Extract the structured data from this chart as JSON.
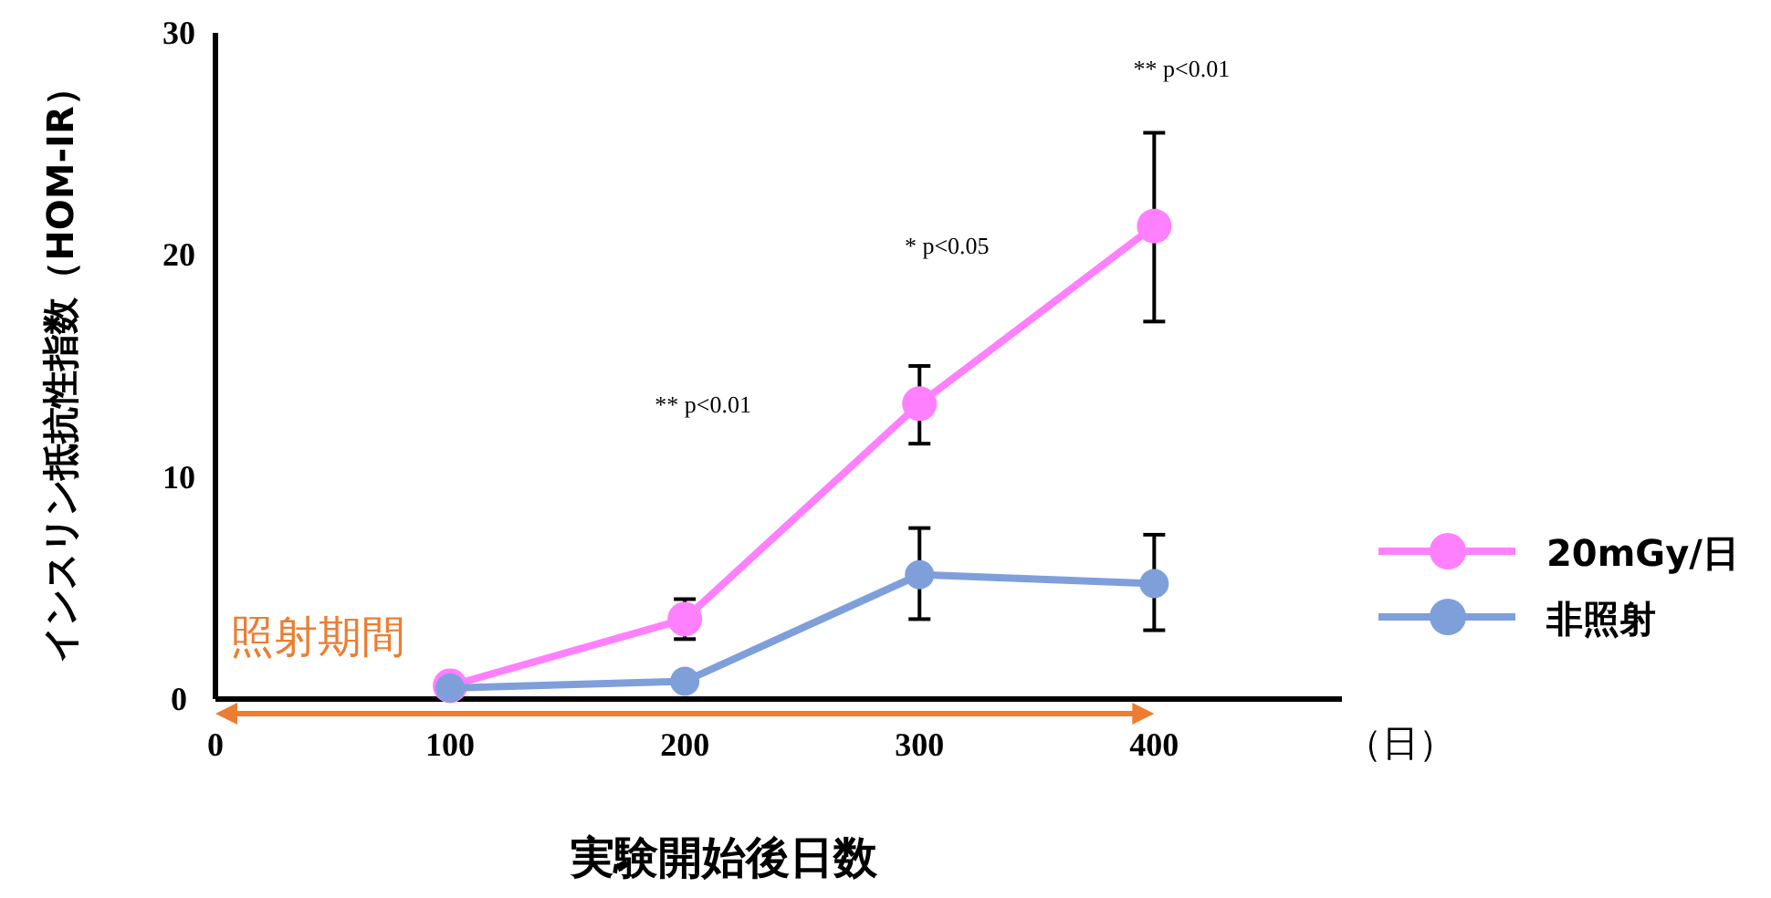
{
  "chart_data": {
    "type": "line",
    "xlabel": "実験開始後日数",
    "ylabel": "インスリン抵抗性指数（HOM-IR）",
    "x": [
      100,
      200,
      300,
      400
    ],
    "xlim": [
      0,
      480
    ],
    "xticks": [
      0,
      100,
      200,
      300,
      400
    ],
    "ylim": [
      0,
      30
    ],
    "yticks": [
      0,
      10,
      20,
      30
    ],
    "series": [
      {
        "name": "20mGy/日",
        "color": "#ff80ff",
        "values": [
          0.6,
          3.6,
          13.3,
          21.3
        ],
        "errors": [
          null,
          [
            2.7,
            4.5
          ],
          [
            11.5,
            15.0
          ],
          [
            17.0,
            25.5
          ]
        ]
      },
      {
        "name": "非照射",
        "color": "#7f9fdb",
        "values": [
          0.5,
          0.8,
          5.6,
          5.2
        ],
        "errors": [
          null,
          null,
          [
            3.6,
            7.7
          ],
          [
            3.1,
            7.4
          ]
        ]
      }
    ],
    "annotations": [
      "** p<0.01",
      "* p<0.05",
      "** p<0.01",
      "照射期間",
      "（日）"
    ],
    "marker": "circle",
    "line_style": "solid",
    "grid": false,
    "legend": "right"
  }
}
